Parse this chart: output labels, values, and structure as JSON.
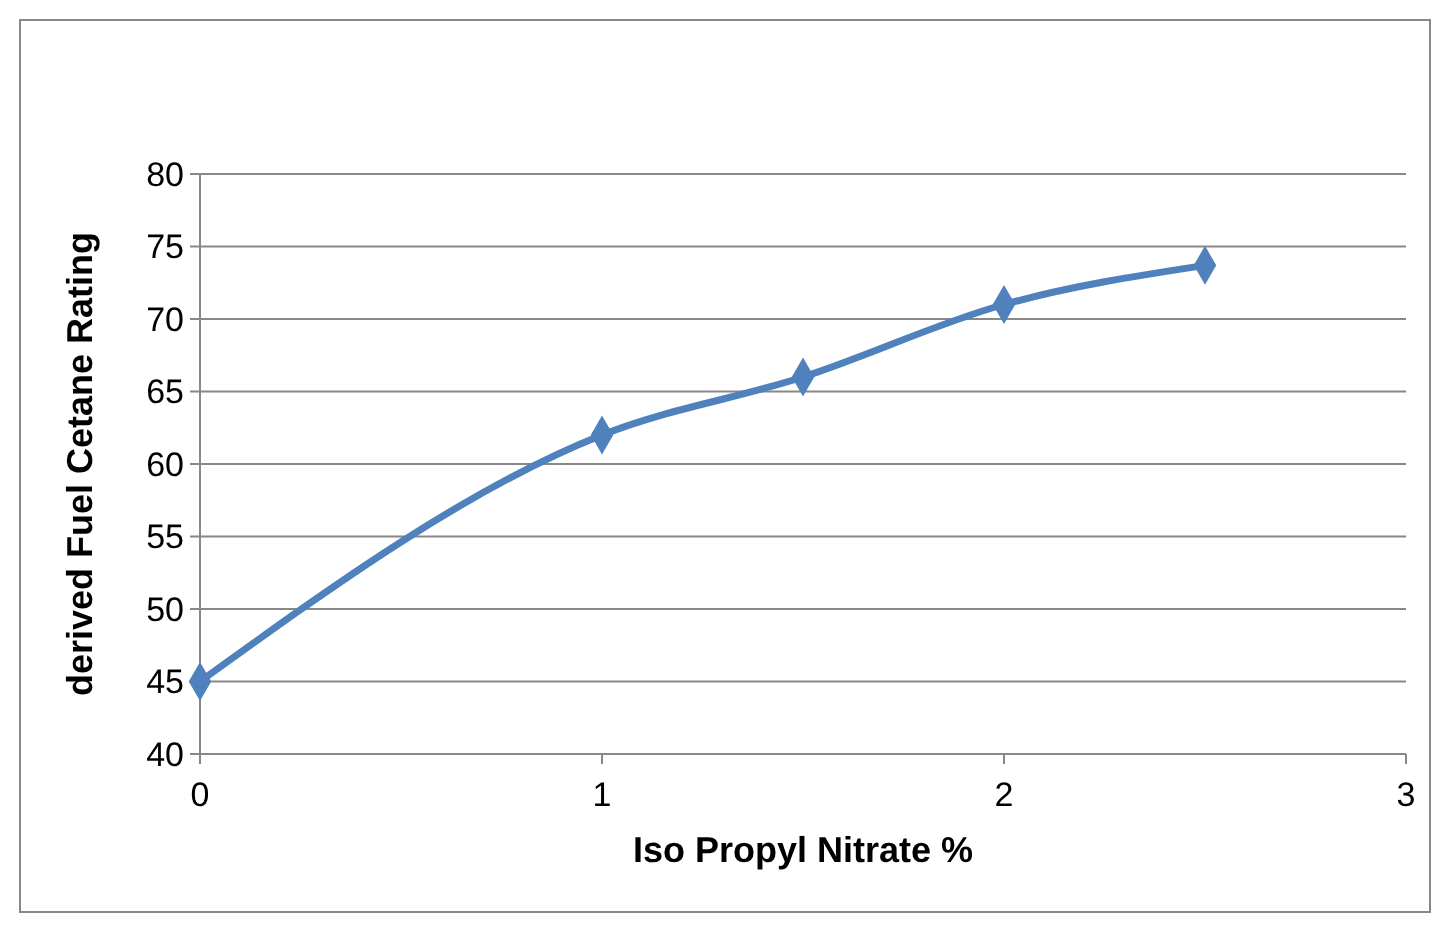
{
  "chart_data": {
    "type": "line",
    "xlabel": "Iso Propyl Nitrate %",
    "ylabel": "derived Fuel Cetane Rating",
    "x": [
      0,
      1,
      1.5,
      2,
      2.5
    ],
    "series": [
      {
        "color": "#4f81bd",
        "values": [
          45,
          62,
          66,
          71,
          73.7
        ]
      }
    ],
    "xlim": [
      0,
      3
    ],
    "xticks": [
      0,
      1,
      2,
      3
    ],
    "ylim": [
      40,
      80
    ],
    "yticks": [
      40,
      45,
      50,
      55,
      60,
      65,
      70,
      75,
      80
    ],
    "grid": "y",
    "marker": "diamond",
    "line_style": "solid"
  }
}
